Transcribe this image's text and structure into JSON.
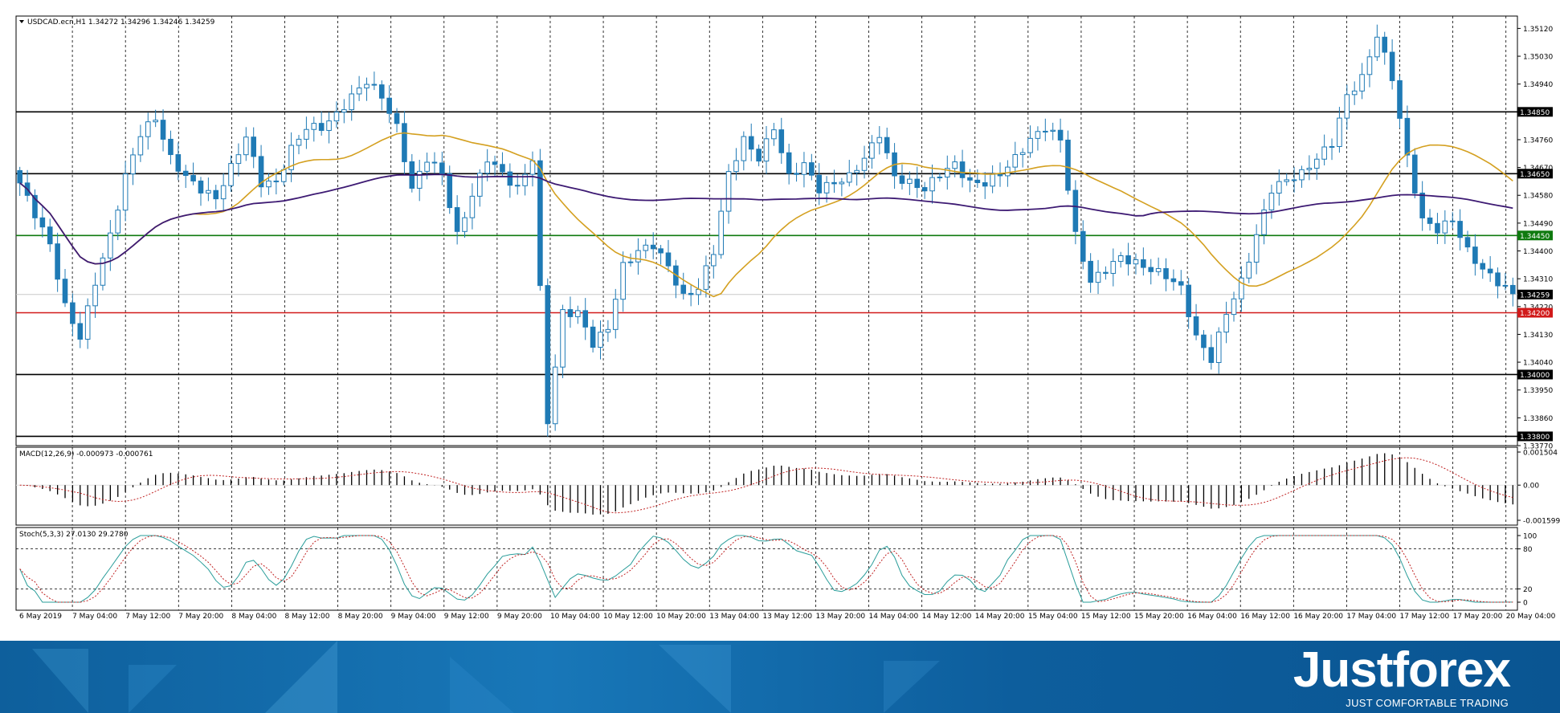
{
  "chart_data": [
    {
      "type": "candlestick",
      "title": "USDCAD.ecn,H1",
      "ohlc_header": "1.34272 1.34296 1.34246 1.34259",
      "ylim": [
        1.3377,
        1.3516
      ],
      "y_ticks": [
        "1.35120",
        "1.35030",
        "1.34940",
        "1.34850",
        "1.34760",
        "1.34670",
        "1.34580",
        "1.34490",
        "1.34400",
        "1.34310",
        "1.34220",
        "1.34130",
        "1.34040",
        "1.33950",
        "1.33860",
        "1.33770"
      ],
      "x_ticks": [
        "6 May 2019",
        "7 May 04:00",
        "7 May 12:00",
        "7 May 20:00",
        "8 May 04:00",
        "8 May 12:00",
        "8 May 20:00",
        "9 May 04:00",
        "9 May 12:00",
        "9 May 20:00",
        "10 May 04:00",
        "10 May 12:00",
        "10 May 20:00",
        "13 May 04:00",
        "13 May 12:00",
        "13 May 20:00",
        "14 May 04:00",
        "14 May 12:00",
        "14 May 20:00",
        "15 May 04:00",
        "15 May 12:00",
        "15 May 20:00",
        "16 May 04:00",
        "16 May 12:00",
        "16 May 20:00",
        "17 May 04:00",
        "17 May 12:00",
        "17 May 20:00",
        "20 May 04:00"
      ],
      "levels": [
        {
          "price": 1.3485,
          "label": "1.34850",
          "color": "#000000"
        },
        {
          "price": 1.3465,
          "label": "1.34650",
          "color": "#000000"
        },
        {
          "price": 1.3445,
          "label": "1.34450",
          "color": "#0f7a0f"
        },
        {
          "price": 1.342,
          "label": "1.34200",
          "color": "#d11a1a"
        },
        {
          "price": 1.34,
          "label": "1.34000",
          "color": "#000000"
        },
        {
          "price": 1.338,
          "label": "1.33800",
          "color": "#000000"
        }
      ],
      "current_price": {
        "price": 1.34259,
        "label": "1.34259"
      },
      "close_path": [
        [
          0,
          1.3462
        ],
        [
          4,
          1.3442
        ],
        [
          6,
          1.3422
        ],
        [
          8,
          1.3412
        ],
        [
          10,
          1.343
        ],
        [
          12,
          1.3445
        ],
        [
          14,
          1.3464
        ],
        [
          16,
          1.3478
        ],
        [
          18,
          1.3483
        ],
        [
          20,
          1.347
        ],
        [
          22,
          1.3464
        ],
        [
          24,
          1.346
        ],
        [
          26,
          1.3457
        ],
        [
          28,
          1.3467
        ],
        [
          30,
          1.3477
        ],
        [
          32,
          1.3462
        ],
        [
          34,
          1.3462
        ],
        [
          36,
          1.3473
        ],
        [
          38,
          1.348
        ],
        [
          40,
          1.348
        ],
        [
          42,
          1.3484
        ],
        [
          44,
          1.349
        ],
        [
          46,
          1.3495
        ],
        [
          48,
          1.349
        ],
        [
          50,
          1.348
        ],
        [
          52,
          1.346
        ],
        [
          54,
          1.347
        ],
        [
          56,
          1.3465
        ],
        [
          58,
          1.3445
        ],
        [
          60,
          1.3458
        ],
        [
          62,
          1.347
        ],
        [
          64,
          1.3465
        ],
        [
          66,
          1.346
        ],
        [
          68,
          1.347
        ],
        [
          70,
          1.3385
        ],
        [
          72,
          1.342
        ],
        [
          74,
          1.342
        ],
        [
          76,
          1.341
        ],
        [
          78,
          1.3415
        ],
        [
          80,
          1.3435
        ],
        [
          82,
          1.344
        ],
        [
          84,
          1.3442
        ],
        [
          86,
          1.3435
        ],
        [
          88,
          1.3425
        ],
        [
          90,
          1.3428
        ],
        [
          92,
          1.344
        ],
        [
          94,
          1.3465
        ],
        [
          96,
          1.3476
        ],
        [
          98,
          1.347
        ],
        [
          100,
          1.348
        ],
        [
          102,
          1.3464
        ],
        [
          104,
          1.3468
        ],
        [
          106,
          1.346
        ],
        [
          108,
          1.3462
        ],
        [
          110,
          1.3464
        ],
        [
          112,
          1.347
        ],
        [
          114,
          1.3478
        ],
        [
          116,
          1.3464
        ],
        [
          118,
          1.3462
        ],
        [
          120,
          1.346
        ],
        [
          122,
          1.3465
        ],
        [
          124,
          1.3468
        ],
        [
          126,
          1.3462
        ],
        [
          128,
          1.3462
        ],
        [
          130,
          1.3465
        ],
        [
          132,
          1.347
        ],
        [
          134,
          1.3476
        ],
        [
          136,
          1.348
        ],
        [
          138,
          1.3476
        ],
        [
          140,
          1.3445
        ],
        [
          142,
          1.343
        ],
        [
          144,
          1.3434
        ],
        [
          146,
          1.3438
        ],
        [
          148,
          1.3436
        ],
        [
          150,
          1.3434
        ],
        [
          152,
          1.3432
        ],
        [
          154,
          1.3428
        ],
        [
          156,
          1.3412
        ],
        [
          158,
          1.3405
        ],
        [
          160,
          1.342
        ],
        [
          162,
          1.343
        ],
        [
          164,
          1.3445
        ],
        [
          166,
          1.346
        ],
        [
          168,
          1.3463
        ],
        [
          170,
          1.3465
        ],
        [
          172,
          1.347
        ],
        [
          174,
          1.3475
        ],
        [
          176,
          1.349
        ],
        [
          178,
          1.3496
        ],
        [
          180,
          1.351
        ],
        [
          182,
          1.3496
        ],
        [
          184,
          1.347
        ],
        [
          186,
          1.345
        ],
        [
          188,
          1.3447
        ],
        [
          190,
          1.345
        ],
        [
          192,
          1.344
        ],
        [
          194,
          1.3434
        ],
        [
          196,
          1.343
        ],
        [
          198,
          1.3426
        ]
      ]
    },
    {
      "type": "bar",
      "title": "MACD(12,26,9) -0.000973 -0.000761",
      "ylim": [
        -0.001599,
        0.001504
      ],
      "y_ticks": [
        "0.001504",
        "0.00",
        "-0.001599"
      ]
    },
    {
      "type": "line",
      "title": "Stoch(5,3,3) 27.0130 29.2780",
      "ylim": [
        0,
        100
      ],
      "y_ticks": [
        "100",
        "80",
        "20",
        "0"
      ],
      "levels": [
        80,
        20
      ]
    }
  ],
  "brand": {
    "name": "Justforex",
    "tagline": "JUST COMFORTABLE TRADING"
  },
  "colors": {
    "bull": "#ffffff",
    "bear": "#1f7ab5",
    "ma_fast": "#d4a020",
    "ma_slow": "#3d1a73",
    "stoch_main": "#2a9d9a",
    "stoch_signal": "#c02222"
  }
}
